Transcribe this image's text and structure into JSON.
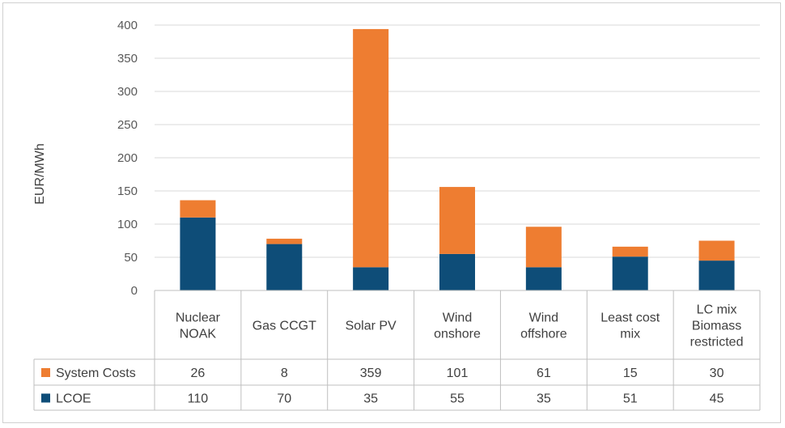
{
  "chart_data": {
    "type": "bar",
    "stacked": true,
    "categories": [
      [
        "Nuclear",
        "NOAK"
      ],
      [
        "Gas CCGT"
      ],
      [
        "Solar PV"
      ],
      [
        "Wind",
        "onshore"
      ],
      [
        "Wind",
        "offshore"
      ],
      [
        "Least cost",
        "mix"
      ],
      [
        "LC mix",
        "Biomass",
        "restricted"
      ]
    ],
    "series": [
      {
        "name": "LCOE",
        "values": [
          110,
          70,
          35,
          55,
          35,
          51,
          45
        ]
      },
      {
        "name": "System Costs",
        "values": [
          26,
          8,
          359,
          101,
          61,
          15,
          30
        ]
      }
    ],
    "table_row_order": [
      "System Costs",
      "LCOE"
    ],
    "ylabel": "EUR/MWh",
    "ylim": [
      0,
      400
    ],
    "yticks": [
      0,
      50,
      100,
      150,
      200,
      250,
      300,
      350,
      400
    ],
    "grid": true,
    "legend": "data-table",
    "colors": {
      "LCOE": "#0e4d78",
      "System Costs": "#ee7d31",
      "grid": "#d9d9d9",
      "table": "#bfbfbf"
    }
  }
}
